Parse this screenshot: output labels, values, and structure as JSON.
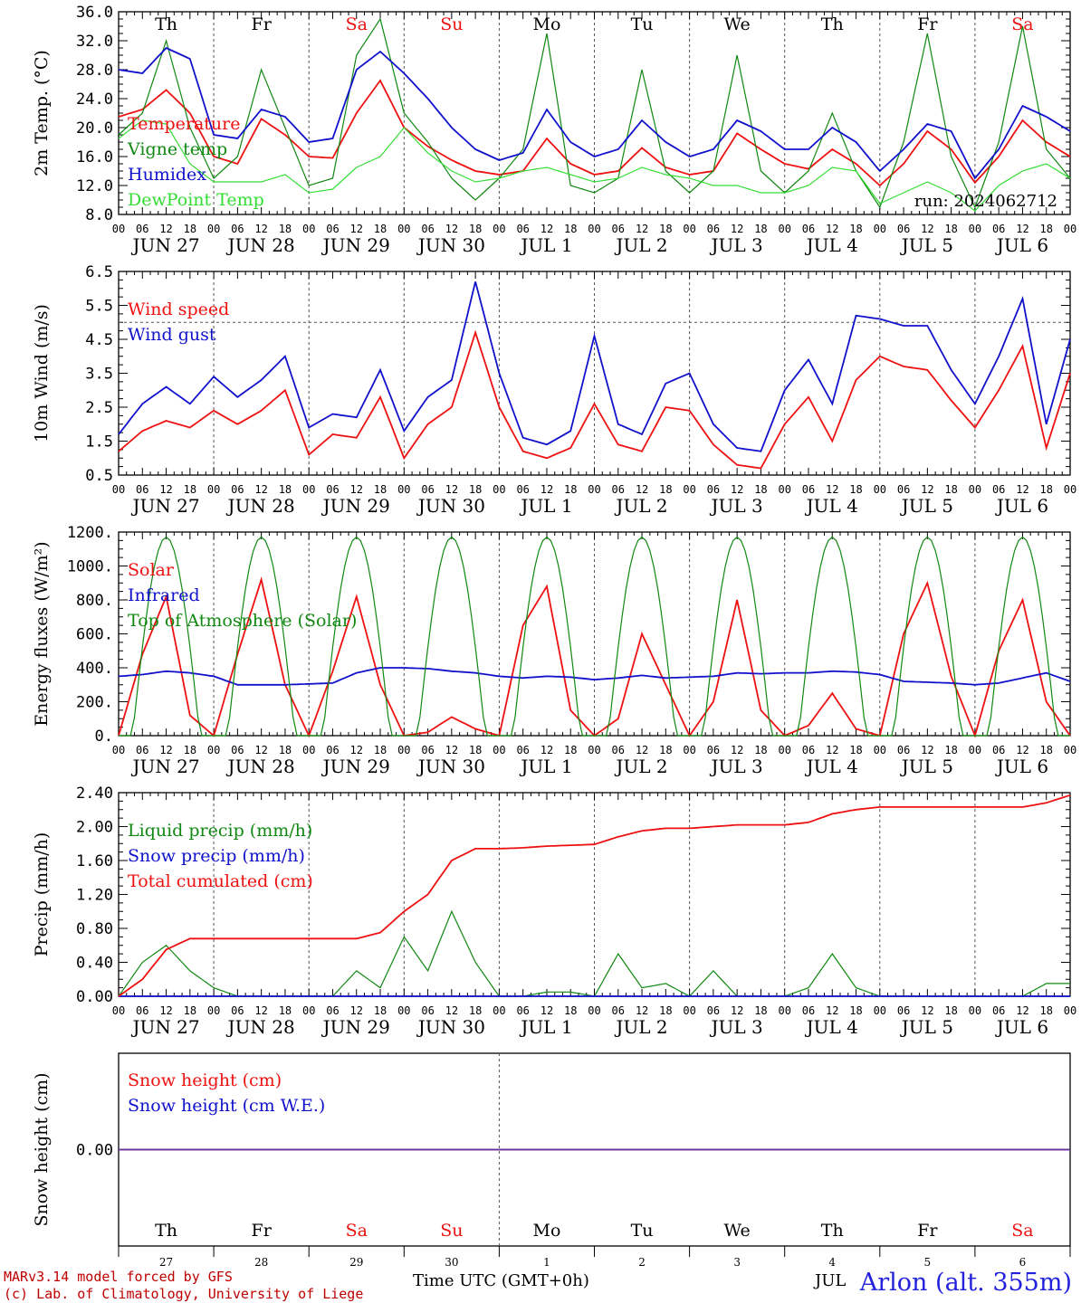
{
  "colors": {
    "red": "#ee1111",
    "green": "#118811",
    "blue": "#1111cc",
    "lightgreen": "#33dd33",
    "purple": "#663399",
    "grid": "#555555"
  },
  "days": {
    "names": [
      "Th",
      "Fr",
      "Sa",
      "Su",
      "Mo",
      "Tu",
      "We",
      "Th",
      "Fr",
      "Sa"
    ],
    "weekend": [
      false,
      false,
      true,
      true,
      false,
      false,
      false,
      false,
      false,
      true
    ],
    "dates": [
      "JUN 27",
      "JUN 28",
      "JUN 29",
      "JUN 30",
      "JUL  1",
      "JUL  2",
      "JUL  3",
      "JUL  4",
      "JUL  5",
      "JUL  6"
    ],
    "numbers": [
      "27",
      "28",
      "29",
      "30",
      "1",
      "2",
      "3",
      "4",
      "5",
      "6"
    ],
    "hour_ticks": [
      "00",
      "06",
      "12",
      "18"
    ],
    "end_tick": "00"
  },
  "footer": {
    "model": "MARv3.14 model forced by GFS",
    "lab": "(c) Lab. of Climatology, University of Liege",
    "xlabel": "Time UTC (GMT+0h)",
    "month": "JUL",
    "station": "Arlon (alt. 355m)"
  },
  "chart_data": [
    {
      "type": "line",
      "ylabel": "2m Temp. (°C)",
      "ylim": [
        8,
        36
      ],
      "yticks": [
        "8.0",
        "12.0",
        "16.0",
        "20.0",
        "24.0",
        "28.0",
        "32.0",
        "36.0"
      ],
      "ytick_values": [
        8,
        12,
        16,
        20,
        24,
        28,
        32,
        36
      ],
      "annotation": "run: 2024062712",
      "x_hours": [
        0,
        6,
        12,
        18,
        24,
        30,
        36,
        42,
        48,
        54,
        60,
        66,
        72,
        78,
        84,
        90,
        96,
        102,
        108,
        114,
        120,
        126,
        132,
        138,
        144,
        150,
        156,
        162,
        168,
        174,
        180,
        186,
        192,
        198,
        204,
        210,
        216,
        222,
        228,
        234,
        240
      ],
      "series": [
        {
          "name": "Temperature",
          "color": "red",
          "values": [
            21.5,
            22.5,
            25.2,
            22,
            16,
            15,
            21.2,
            19,
            16,
            15.8,
            22,
            26.5,
            20,
            17.4,
            15.5,
            14,
            13.5,
            14,
            18.5,
            15,
            13.5,
            14,
            17.2,
            14.5,
            13.5,
            14,
            19.2,
            17,
            15,
            14.3,
            17,
            15,
            12,
            15,
            19.5,
            17,
            12.4,
            16,
            21,
            18,
            16
          ]
        },
        {
          "name": "Vigne temp",
          "color": "green",
          "values": [
            19,
            22,
            32,
            20,
            13,
            16,
            28,
            20,
            12,
            13,
            30,
            35,
            22,
            18,
            13,
            10,
            13,
            17,
            33,
            12,
            11,
            13,
            28,
            14,
            11,
            14,
            30,
            14,
            11,
            14,
            22,
            14,
            9,
            18,
            33,
            16,
            9,
            18,
            34,
            17,
            13
          ]
        },
        {
          "name": "Humidex",
          "color": "blue",
          "values": [
            28,
            27.5,
            31,
            29.5,
            19,
            18.5,
            22.5,
            21.5,
            18,
            18.5,
            28,
            30.5,
            27.5,
            24,
            20,
            17,
            15.5,
            16.5,
            22.5,
            18,
            16,
            17,
            21,
            18,
            16,
            17,
            21,
            19.5,
            17,
            17,
            20,
            18,
            14,
            17,
            20.5,
            19.5,
            13,
            17,
            23,
            21.5,
            19.5
          ]
        },
        {
          "name": "DewPoint Temp",
          "color": "lightgreen",
          "values": [
            18.5,
            21,
            20.5,
            15,
            12.5,
            12.5,
            12.5,
            13.5,
            11,
            11.5,
            14.5,
            16,
            20,
            16.5,
            14,
            12.5,
            13,
            14,
            14.5,
            13.5,
            12.5,
            13,
            14.5,
            13.5,
            13,
            12,
            12,
            11,
            11,
            12,
            14.5,
            14,
            9.5,
            11,
            12.5,
            11,
            8.5,
            12,
            14,
            15,
            13
          ]
        }
      ]
    },
    {
      "type": "line",
      "ylabel": "10m Wind (m/s)",
      "ylim": [
        0.5,
        6.5
      ],
      "yticks": [
        "0.5",
        "1.5",
        "2.5",
        "3.5",
        "4.5",
        "5.5",
        "6.5"
      ],
      "ytick_values": [
        0.5,
        1.5,
        2.5,
        3.5,
        4.5,
        5.5,
        6.5
      ],
      "hline": 5.0,
      "x_hours": [
        0,
        6,
        12,
        18,
        24,
        30,
        36,
        42,
        48,
        54,
        60,
        66,
        72,
        78,
        84,
        90,
        96,
        102,
        108,
        114,
        120,
        126,
        132,
        138,
        144,
        150,
        156,
        162,
        168,
        174,
        180,
        186,
        192,
        198,
        204,
        210,
        216,
        222,
        228,
        234,
        240
      ],
      "series": [
        {
          "name": "Wind speed",
          "color": "red",
          "values": [
            1.2,
            1.8,
            2.1,
            1.9,
            2.4,
            2.0,
            2.4,
            3.0,
            1.1,
            1.7,
            1.6,
            2.8,
            1.0,
            2.0,
            2.5,
            4.7,
            2.5,
            1.2,
            1.0,
            1.3,
            2.6,
            1.4,
            1.2,
            2.5,
            2.4,
            1.4,
            0.8,
            0.7,
            2.0,
            2.8,
            1.5,
            3.3,
            4.0,
            3.7,
            3.6,
            2.7,
            1.9,
            3.0,
            4.3,
            1.3,
            3.5
          ]
        },
        {
          "name": "Wind gust",
          "color": "blue",
          "values": [
            1.7,
            2.6,
            3.1,
            2.6,
            3.4,
            2.8,
            3.3,
            4.0,
            1.9,
            2.3,
            2.2,
            3.6,
            1.8,
            2.8,
            3.3,
            6.2,
            3.5,
            1.6,
            1.4,
            1.8,
            4.6,
            2.0,
            1.7,
            3.2,
            3.5,
            2.0,
            1.3,
            1.2,
            3.0,
            3.9,
            2.6,
            5.2,
            5.1,
            4.9,
            4.9,
            3.6,
            2.6,
            4.0,
            5.7,
            2.0,
            4.5
          ]
        }
      ]
    },
    {
      "type": "line",
      "ylabel": "Energy fluxes (W/m²)",
      "ylim": [
        0,
        1200
      ],
      "yticks": [
        "0.",
        "200.",
        "400.",
        "600.",
        "800.",
        "1000.",
        "1200."
      ],
      "ytick_values": [
        0,
        200,
        400,
        600,
        800,
        1000,
        1200
      ],
      "x_hours": [
        0,
        6,
        12,
        18,
        24,
        30,
        36,
        42,
        48,
        54,
        60,
        66,
        72,
        78,
        84,
        90,
        96,
        102,
        108,
        114,
        120,
        126,
        132,
        138,
        144,
        150,
        156,
        162,
        168,
        174,
        180,
        186,
        192,
        198,
        204,
        210,
        216,
        222,
        228,
        234,
        240
      ],
      "series": [
        {
          "name": "Solar",
          "color": "red",
          "values": [
            0,
            480,
            820,
            120,
            0,
            480,
            920,
            300,
            0,
            380,
            820,
            300,
            0,
            20,
            110,
            40,
            0,
            650,
            880,
            150,
            0,
            100,
            600,
            300,
            0,
            200,
            800,
            150,
            0,
            60,
            250,
            40,
            0,
            600,
            900,
            350,
            0,
            500,
            800,
            200,
            0
          ]
        },
        {
          "name": "Infrared",
          "color": "blue",
          "values": [
            350,
            360,
            380,
            370,
            350,
            300,
            300,
            300,
            305,
            310,
            370,
            400,
            400,
            395,
            380,
            370,
            350,
            340,
            350,
            345,
            330,
            340,
            355,
            340,
            345,
            350,
            370,
            365,
            370,
            370,
            380,
            375,
            360,
            320,
            315,
            310,
            300,
            310,
            340,
            370,
            320
          ]
        },
        {
          "name": "Top of Atmosphere (Solar)",
          "color": "green",
          "peak": 1170,
          "sunrise_hour": 3.5,
          "sunset_hour": 20.5
        }
      ]
    },
    {
      "type": "line",
      "ylabel": "Precip (mm/h)",
      "ylim": [
        0,
        2.4
      ],
      "yticks": [
        "0.00",
        "0.40",
        "0.80",
        "1.20",
        "1.60",
        "2.00",
        "2.40"
      ],
      "ytick_values": [
        0,
        0.4,
        0.8,
        1.2,
        1.6,
        2.0,
        2.4
      ],
      "x_hours": [
        0,
        6,
        12,
        18,
        24,
        30,
        36,
        42,
        48,
        54,
        60,
        66,
        72,
        78,
        84,
        90,
        96,
        102,
        108,
        114,
        120,
        126,
        132,
        138,
        144,
        150,
        156,
        162,
        168,
        174,
        180,
        186,
        192,
        198,
        204,
        210,
        216,
        222,
        228,
        234,
        240
      ],
      "series": [
        {
          "name": "Liquid precip (mm/h)",
          "color": "green",
          "values": [
            0,
            0.4,
            0.6,
            0.3,
            0.1,
            0,
            0,
            0,
            0,
            0,
            0.3,
            0.1,
            0.7,
            0.3,
            1.0,
            0.4,
            0,
            0,
            0.05,
            0.05,
            0,
            0.5,
            0.1,
            0.15,
            0,
            0.3,
            0,
            0,
            0,
            0.1,
            0.5,
            0.1,
            0,
            0,
            0,
            0,
            0,
            0,
            0,
            0.15,
            0.15
          ]
        },
        {
          "name": "Snow precip (mm/h)",
          "color": "blue",
          "values": [
            0,
            0,
            0,
            0,
            0,
            0,
            0,
            0,
            0,
            0,
            0,
            0,
            0,
            0,
            0,
            0,
            0,
            0,
            0,
            0,
            0,
            0,
            0,
            0,
            0,
            0,
            0,
            0,
            0,
            0,
            0,
            0,
            0,
            0,
            0,
            0,
            0,
            0,
            0,
            0,
            0
          ]
        },
        {
          "name": "Total cumulated (cm)",
          "color": "red",
          "values": [
            0,
            0.2,
            0.55,
            0.68,
            0.68,
            0.68,
            0.68,
            0.68,
            0.68,
            0.68,
            0.68,
            0.75,
            1.0,
            1.2,
            1.6,
            1.74,
            1.74,
            1.75,
            1.77,
            1.78,
            1.79,
            1.88,
            1.95,
            1.98,
            1.98,
            2.0,
            2.02,
            2.02,
            2.02,
            2.05,
            2.15,
            2.2,
            2.23,
            2.23,
            2.23,
            2.23,
            2.23,
            2.23,
            2.23,
            2.28,
            2.37
          ]
        }
      ]
    },
    {
      "type": "line",
      "ylabel": "Snow height (cm)",
      "ylim": [
        -1,
        1
      ],
      "yticks": [
        "0.00"
      ],
      "ytick_values": [
        0
      ],
      "series": [
        {
          "name": "Snow height (cm)",
          "color": "red",
          "values": [
            0,
            0
          ]
        },
        {
          "name": "Snow height (cm W.E.)",
          "color": "blue",
          "values": [
            0,
            0
          ]
        }
      ]
    }
  ]
}
